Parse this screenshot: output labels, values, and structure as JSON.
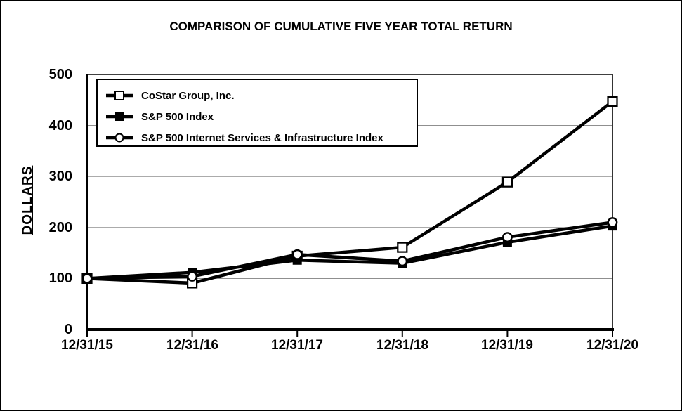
{
  "title": "COMPARISON OF CUMULATIVE FIVE YEAR TOTAL RETURN",
  "chart_data": {
    "type": "line",
    "title": "COMPARISON OF CUMULATIVE FIVE YEAR TOTAL RETURN",
    "xlabel": "",
    "ylabel": "DOLLARS",
    "categories": [
      "12/31/15",
      "12/31/16",
      "12/31/17",
      "12/31/18",
      "12/31/19",
      "12/31/20"
    ],
    "yticks": [
      0,
      100,
      200,
      300,
      400,
      500
    ],
    "ylim": [
      0,
      500
    ],
    "grid": true,
    "legend_position": "top-left",
    "series": [
      {
        "name": "CoStar Group, Inc.",
        "marker": "open-square",
        "values": [
          100,
          91,
          144,
          161,
          289,
          447
        ]
      },
      {
        "name": "S&P 500 Index",
        "marker": "filled-square",
        "values": [
          100,
          112,
          136,
          130,
          171,
          203
        ]
      },
      {
        "name": "S&P 500 Internet Services & Infrastructure Index",
        "marker": "open-circle",
        "values": [
          100,
          104,
          147,
          134,
          181,
          210
        ]
      }
    ],
    "colors": {
      "line": "#000000",
      "grid": "#8f8f8f",
      "background": "#ffffff",
      "frame": "#000000"
    }
  }
}
